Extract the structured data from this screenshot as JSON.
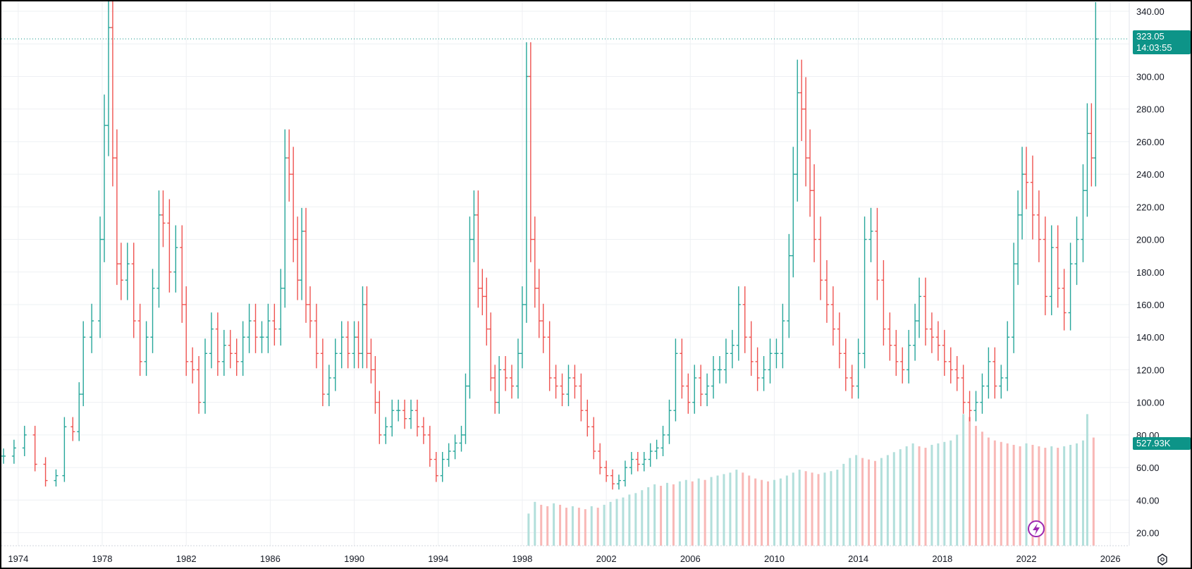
{
  "chart_data": {
    "type": "candlestick-ohlc-bars",
    "title": "",
    "y_axis": {
      "ticks": [
        "20.00",
        "40.00",
        "60.00",
        "80.00",
        "100.00",
        "120.00",
        "140.00",
        "160.00",
        "180.00",
        "200.00",
        "220.00",
        "240.00",
        "260.00",
        "280.00",
        "300.00",
        "320.00",
        "340.00"
      ],
      "range": [
        12,
        340
      ],
      "side": "right"
    },
    "x_axis": {
      "ticks": [
        "1974",
        "1978",
        "1982",
        "1986",
        "1990",
        "1994",
        "1998",
        "2002",
        "2006",
        "2010",
        "2014",
        "2018",
        "2022",
        "2026"
      ],
      "range": [
        1973.2,
        2026.9
      ]
    },
    "grid": true,
    "colors": {
      "up": "#26a69a",
      "down": "#ef5350",
      "volume_up": "#b2dfdb",
      "volume_down": "#f8b8b6",
      "crosshair": "#0d9488"
    },
    "last_price": {
      "value": "323.05",
      "countdown": "14:03:55"
    },
    "volume_label": "527.93K",
    "price_series": [
      [
        1973.3,
        67
      ],
      [
        1973.8,
        72
      ],
      [
        1974.3,
        80
      ],
      [
        1974.8,
        62
      ],
      [
        1975.3,
        52
      ],
      [
        1975.8,
        55
      ],
      [
        1976.2,
        85
      ],
      [
        1976.6,
        82
      ],
      [
        1976.9,
        105
      ],
      [
        1977.1,
        140
      ],
      [
        1977.5,
        150
      ],
      [
        1977.9,
        200
      ],
      [
        1978.1,
        270
      ],
      [
        1978.3,
        330
      ],
      [
        1978.5,
        250
      ],
      [
        1978.7,
        185
      ],
      [
        1978.9,
        175
      ],
      [
        1979.2,
        185
      ],
      [
        1979.5,
        150
      ],
      [
        1979.8,
        125
      ],
      [
        1980.1,
        140
      ],
      [
        1980.4,
        170
      ],
      [
        1980.7,
        215
      ],
      [
        1980.9,
        210
      ],
      [
        1981.2,
        180
      ],
      [
        1981.5,
        195
      ],
      [
        1981.8,
        160
      ],
      [
        1982.0,
        125
      ],
      [
        1982.3,
        120
      ],
      [
        1982.6,
        100
      ],
      [
        1982.9,
        130
      ],
      [
        1983.2,
        145
      ],
      [
        1983.5,
        125
      ],
      [
        1983.8,
        135
      ],
      [
        1984.1,
        130
      ],
      [
        1984.4,
        125
      ],
      [
        1984.7,
        140
      ],
      [
        1985.0,
        150
      ],
      [
        1985.3,
        140
      ],
      [
        1985.6,
        140
      ],
      [
        1985.9,
        150
      ],
      [
        1986.2,
        145
      ],
      [
        1986.5,
        170
      ],
      [
        1986.7,
        250
      ],
      [
        1986.9,
        240
      ],
      [
        1987.1,
        200
      ],
      [
        1987.3,
        175
      ],
      [
        1987.5,
        205
      ],
      [
        1987.7,
        160
      ],
      [
        1987.9,
        150
      ],
      [
        1988.2,
        130
      ],
      [
        1988.5,
        105
      ],
      [
        1988.8,
        115
      ],
      [
        1989.1,
        130
      ],
      [
        1989.4,
        140
      ],
      [
        1989.7,
        130
      ],
      [
        1990.0,
        140
      ],
      [
        1990.2,
        130
      ],
      [
        1990.4,
        160
      ],
      [
        1990.6,
        130
      ],
      [
        1990.8,
        120
      ],
      [
        1991.0,
        100
      ],
      [
        1991.2,
        80
      ],
      [
        1991.5,
        85
      ],
      [
        1991.8,
        95
      ],
      [
        1992.1,
        95
      ],
      [
        1992.4,
        90
      ],
      [
        1992.7,
        95
      ],
      [
        1993.0,
        85
      ],
      [
        1993.3,
        80
      ],
      [
        1993.6,
        65
      ],
      [
        1993.9,
        55
      ],
      [
        1994.2,
        65
      ],
      [
        1994.5,
        70
      ],
      [
        1994.8,
        75
      ],
      [
        1995.1,
        80
      ],
      [
        1995.3,
        110
      ],
      [
        1995.5,
        200
      ],
      [
        1995.7,
        215
      ],
      [
        1995.9,
        170
      ],
      [
        1996.1,
        165
      ],
      [
        1996.3,
        145
      ],
      [
        1996.5,
        115
      ],
      [
        1996.7,
        100
      ],
      [
        1996.9,
        120
      ],
      [
        1997.2,
        115
      ],
      [
        1997.5,
        110
      ],
      [
        1997.8,
        130
      ],
      [
        1998.0,
        160
      ],
      [
        1998.2,
        300
      ],
      [
        1998.4,
        200
      ],
      [
        1998.6,
        170
      ],
      [
        1998.8,
        150
      ],
      [
        1999.0,
        140
      ],
      [
        1999.3,
        115
      ],
      [
        1999.6,
        110
      ],
      [
        1999.9,
        105
      ],
      [
        2000.2,
        115
      ],
      [
        2000.5,
        110
      ],
      [
        2000.8,
        95
      ],
      [
        2001.1,
        85
      ],
      [
        2001.4,
        70
      ],
      [
        2001.7,
        60
      ],
      [
        2002.0,
        55
      ],
      [
        2002.3,
        50
      ],
      [
        2002.6,
        52
      ],
      [
        2002.9,
        60
      ],
      [
        2003.2,
        65
      ],
      [
        2003.5,
        62
      ],
      [
        2003.8,
        65
      ],
      [
        2004.1,
        70
      ],
      [
        2004.4,
        72
      ],
      [
        2004.7,
        80
      ],
      [
        2005.0,
        95
      ],
      [
        2005.3,
        130
      ],
      [
        2005.6,
        110
      ],
      [
        2005.9,
        100
      ],
      [
        2006.2,
        115
      ],
      [
        2006.5,
        105
      ],
      [
        2006.8,
        110
      ],
      [
        2007.1,
        120
      ],
      [
        2007.4,
        120
      ],
      [
        2007.7,
        130
      ],
      [
        2008.0,
        135
      ],
      [
        2008.3,
        160
      ],
      [
        2008.6,
        140
      ],
      [
        2008.9,
        125
      ],
      [
        2009.2,
        115
      ],
      [
        2009.5,
        120
      ],
      [
        2009.8,
        130
      ],
      [
        2010.1,
        130
      ],
      [
        2010.4,
        150
      ],
      [
        2010.7,
        190
      ],
      [
        2010.9,
        240
      ],
      [
        2011.1,
        290
      ],
      [
        2011.3,
        280
      ],
      [
        2011.5,
        250
      ],
      [
        2011.7,
        230
      ],
      [
        2011.9,
        200
      ],
      [
        2012.2,
        175
      ],
      [
        2012.5,
        160
      ],
      [
        2012.8,
        145
      ],
      [
        2013.1,
        130
      ],
      [
        2013.4,
        115
      ],
      [
        2013.7,
        110
      ],
      [
        2014.0,
        130
      ],
      [
        2014.3,
        200
      ],
      [
        2014.6,
        205
      ],
      [
        2014.9,
        175
      ],
      [
        2015.2,
        145
      ],
      [
        2015.5,
        135
      ],
      [
        2015.8,
        125
      ],
      [
        2016.1,
        120
      ],
      [
        2016.4,
        135
      ],
      [
        2016.7,
        150
      ],
      [
        2016.9,
        165
      ],
      [
        2017.2,
        145
      ],
      [
        2017.5,
        140
      ],
      [
        2017.8,
        135
      ],
      [
        2018.1,
        125
      ],
      [
        2018.4,
        120
      ],
      [
        2018.7,
        115
      ],
      [
        2019.0,
        100
      ],
      [
        2019.3,
        95
      ],
      [
        2019.6,
        100
      ],
      [
        2019.9,
        110
      ],
      [
        2020.2,
        125
      ],
      [
        2020.5,
        110
      ],
      [
        2020.8,
        115
      ],
      [
        2021.1,
        140
      ],
      [
        2021.4,
        185
      ],
      [
        2021.6,
        215
      ],
      [
        2021.8,
        240
      ],
      [
        2022.0,
        235
      ],
      [
        2022.3,
        215
      ],
      [
        2022.6,
        200
      ],
      [
        2022.9,
        165
      ],
      [
        2023.2,
        195
      ],
      [
        2023.5,
        170
      ],
      [
        2023.8,
        155
      ],
      [
        2024.1,
        185
      ],
      [
        2024.4,
        200
      ],
      [
        2024.7,
        230
      ],
      [
        2024.9,
        265
      ],
      [
        2025.1,
        250
      ],
      [
        2025.3,
        323
      ]
    ],
    "volume_series": [
      [
        1998.3,
        22
      ],
      [
        1998.6,
        30
      ],
      [
        1998.9,
        28
      ],
      [
        1999.2,
        27
      ],
      [
        1999.5,
        29
      ],
      [
        1999.8,
        28
      ],
      [
        2000.1,
        26
      ],
      [
        2000.4,
        27
      ],
      [
        2000.7,
        26
      ],
      [
        2001.0,
        25
      ],
      [
        2001.3,
        27
      ],
      [
        2001.6,
        26
      ],
      [
        2001.9,
        28
      ],
      [
        2002.2,
        30
      ],
      [
        2002.5,
        32
      ],
      [
        2002.8,
        33
      ],
      [
        2003.1,
        35
      ],
      [
        2003.4,
        36
      ],
      [
        2003.7,
        38
      ],
      [
        2004.0,
        40
      ],
      [
        2004.3,
        42
      ],
      [
        2004.6,
        41
      ],
      [
        2004.9,
        43
      ],
      [
        2005.2,
        42
      ],
      [
        2005.5,
        44
      ],
      [
        2005.8,
        45
      ],
      [
        2006.1,
        44
      ],
      [
        2006.4,
        46
      ],
      [
        2006.7,
        45
      ],
      [
        2007.0,
        47
      ],
      [
        2007.3,
        48
      ],
      [
        2007.6,
        49
      ],
      [
        2007.9,
        50
      ],
      [
        2008.2,
        52
      ],
      [
        2008.5,
        50
      ],
      [
        2008.8,
        48
      ],
      [
        2009.1,
        46
      ],
      [
        2009.4,
        45
      ],
      [
        2009.7,
        44
      ],
      [
        2010.0,
        45
      ],
      [
        2010.3,
        46
      ],
      [
        2010.6,
        48
      ],
      [
        2010.9,
        50
      ],
      [
        2011.2,
        52
      ],
      [
        2011.5,
        51
      ],
      [
        2011.8,
        50
      ],
      [
        2012.1,
        49
      ],
      [
        2012.4,
        50
      ],
      [
        2012.7,
        51
      ],
      [
        2013.0,
        52
      ],
      [
        2013.3,
        56
      ],
      [
        2013.6,
        60
      ],
      [
        2013.9,
        62
      ],
      [
        2014.2,
        60
      ],
      [
        2014.5,
        59
      ],
      [
        2014.8,
        58
      ],
      [
        2015.1,
        60
      ],
      [
        2015.4,
        62
      ],
      [
        2015.7,
        64
      ],
      [
        2016.0,
        66
      ],
      [
        2016.3,
        68
      ],
      [
        2016.6,
        70
      ],
      [
        2016.9,
        68
      ],
      [
        2017.2,
        67
      ],
      [
        2017.5,
        69
      ],
      [
        2017.8,
        70
      ],
      [
        2018.1,
        71
      ],
      [
        2018.4,
        72
      ],
      [
        2018.7,
        76
      ],
      [
        2019.0,
        90
      ],
      [
        2019.3,
        88
      ],
      [
        2019.6,
        82
      ],
      [
        2019.9,
        78
      ],
      [
        2020.2,
        74
      ],
      [
        2020.5,
        72
      ],
      [
        2020.8,
        71
      ],
      [
        2021.1,
        70
      ],
      [
        2021.4,
        69
      ],
      [
        2021.7,
        68
      ],
      [
        2022.0,
        70
      ],
      [
        2022.3,
        69
      ],
      [
        2022.6,
        68
      ],
      [
        2022.9,
        67
      ],
      [
        2023.2,
        68
      ],
      [
        2023.5,
        67
      ],
      [
        2023.8,
        68
      ],
      [
        2024.1,
        69
      ],
      [
        2024.4,
        70
      ],
      [
        2024.7,
        72
      ],
      [
        2024.9,
        90
      ],
      [
        2025.2,
        74
      ]
    ]
  }
}
